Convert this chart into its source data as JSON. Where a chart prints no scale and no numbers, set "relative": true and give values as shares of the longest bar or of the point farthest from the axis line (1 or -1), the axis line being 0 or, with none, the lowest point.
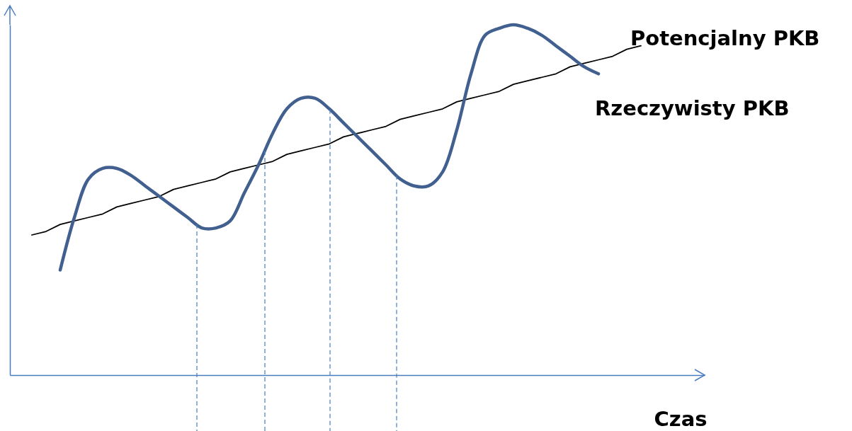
{
  "chart_data": {
    "type": "line",
    "relative": true,
    "xlabel": "Czas",
    "tick_labels": false,
    "categories": [
      null,
      null,
      null,
      null,
      null,
      null,
      null,
      null,
      null,
      null,
      null,
      null,
      null,
      null,
      null,
      null,
      null,
      null,
      null,
      null,
      null,
      null,
      null,
      null,
      null,
      null,
      null,
      null,
      null,
      null,
      null,
      null,
      null,
      null,
      null,
      null,
      null,
      null,
      null,
      null,
      null,
      null,
      null,
      null
    ],
    "series": [
      {
        "name": "Potencjalny PKB",
        "color": "#000000",
        "values": [
          0.4,
          0.41,
          0.43,
          0.44,
          0.45,
          0.46,
          0.48,
          0.49,
          0.5,
          0.51,
          0.53,
          0.54,
          0.55,
          0.56,
          0.58,
          0.59,
          0.6,
          0.61,
          0.63,
          0.64,
          0.65,
          0.66,
          0.68,
          0.69,
          0.7,
          0.71,
          0.73,
          0.74,
          0.75,
          0.76,
          0.78,
          0.79,
          0.8,
          0.81,
          0.83,
          0.84,
          0.85,
          0.86,
          0.88,
          0.89,
          0.9,
          0.91,
          0.93,
          0.94
        ]
      },
      {
        "name": "Rzeczywisty PKB",
        "color": "#41608f",
        "values": [
          null,
          null,
          0.3,
          0.45,
          0.56,
          0.59,
          0.59,
          0.57,
          0.54,
          0.51,
          0.48,
          0.45,
          0.42,
          0.42,
          0.44,
          0.52,
          0.6,
          0.69,
          0.76,
          0.79,
          0.79,
          0.76,
          0.72,
          0.68,
          0.64,
          0.6,
          0.56,
          0.54,
          0.54,
          0.58,
          0.7,
          0.86,
          0.97,
          0.99,
          1.0,
          0.99,
          0.97,
          0.94,
          0.91,
          0.88,
          0.86,
          null,
          null,
          null
        ]
      }
    ]
  }
}
